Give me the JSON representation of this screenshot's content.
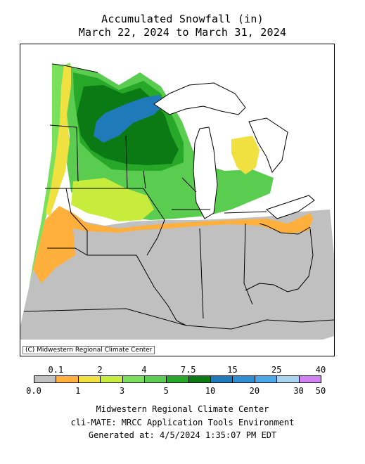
{
  "title": {
    "line1": "Accumulated Snowfall (in)",
    "line2": "March 22, 2024 to March 31, 2024"
  },
  "map": {
    "copyright": "(C) Midwestern Regional Climate Center",
    "fills": {
      "no_snow": "#c0c0c0",
      "orange": "#ffb03c",
      "yellow": "#f0e040",
      "lime": "#c8ec3c",
      "light_green": "#78e05a",
      "mid_green": "#5acd50",
      "green": "#28a828",
      "dark_green": "#0c7a14",
      "blue": "#1e7ab8",
      "water": "#ffffff"
    }
  },
  "legend": {
    "top_labels": [
      "0.1",
      "2",
      "4",
      "7.5",
      "15",
      "25",
      "40"
    ],
    "bottom_labels": [
      "0.0",
      "1",
      "3",
      "5",
      "10",
      "20",
      "30",
      "50"
    ],
    "colors": [
      "#c0c0c0",
      "#ffb03c",
      "#f0e040",
      "#c8ec3c",
      "#78e05a",
      "#5acd50",
      "#28a828",
      "#0c7a14",
      "#1e7ab8",
      "#2e90d2",
      "#48a8e8",
      "#a8d4f0",
      "#d080f0"
    ]
  },
  "footer": {
    "line1": "Midwestern Regional Climate Center",
    "line2": "cli-MATE: MRCC Application Tools Environment",
    "line3": "Generated at: 4/5/2024 1:35:07 PM EDT"
  }
}
